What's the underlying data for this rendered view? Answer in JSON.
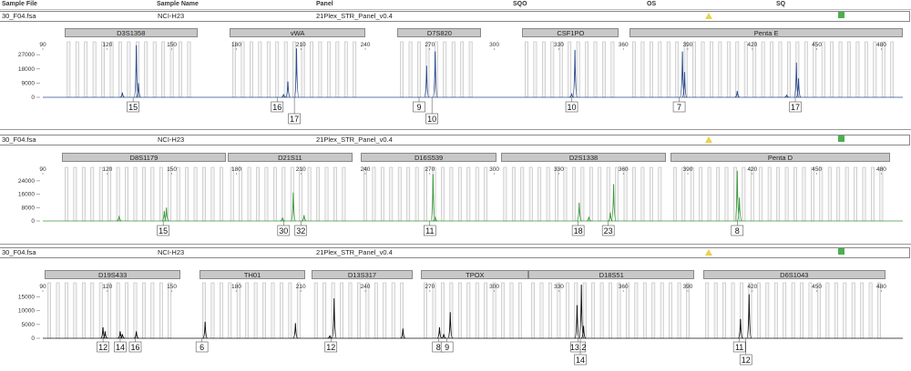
{
  "header": {
    "sample_file": "Sample File",
    "sample_name": "Sample Name",
    "panel": "Panel",
    "sqo": "SQO",
    "os": "OS",
    "sq": "SQ"
  },
  "x_ticks": [
    90,
    120,
    150,
    180,
    210,
    240,
    270,
    300,
    330,
    360,
    390,
    420,
    450,
    480
  ],
  "panels": [
    {
      "file": "30_F04.fsa",
      "name": "NCI-H23",
      "panel": "21Plex_STR_Panel_v0.4",
      "color": "#2b4b8c",
      "y_ticks": [
        0,
        9000,
        18000,
        27000
      ],
      "y_max": 34000,
      "loci": [
        {
          "name": "D3S1358",
          "start": 100,
          "end": 162
        },
        {
          "name": "vWA",
          "start": 177,
          "end": 240
        },
        {
          "name": "D7S820",
          "start": 255,
          "end": 294
        },
        {
          "name": "CSF1PO",
          "start": 313,
          "end": 358
        },
        {
          "name": "Penta E",
          "start": 363,
          "end": 490
        }
      ],
      "peaks": [
        {
          "x": 133.5,
          "h": 33000
        },
        {
          "x": 134.5,
          "h": 9000
        },
        {
          "x": 127,
          "h": 3000
        },
        {
          "x": 204,
          "h": 10000
        },
        {
          "x": 208,
          "h": 31000
        },
        {
          "x": 202,
          "h": 2000
        },
        {
          "x": 268.5,
          "h": 20000
        },
        {
          "x": 272.5,
          "h": 29000
        },
        {
          "x": 337.5,
          "h": 30000
        },
        {
          "x": 336,
          "h": 2500
        },
        {
          "x": 387.5,
          "h": 29000
        },
        {
          "x": 388.5,
          "h": 16000
        },
        {
          "x": 413,
          "h": 4000
        },
        {
          "x": 440.5,
          "h": 22000
        },
        {
          "x": 441.5,
          "h": 12000
        },
        {
          "x": 436,
          "h": 1500
        }
      ],
      "labels": [
        {
          "x": 132,
          "text": "15",
          "row": 0
        },
        {
          "x": 199,
          "text": "16",
          "row": 0
        },
        {
          "x": 207,
          "text": "17",
          "row": 1
        },
        {
          "x": 265,
          "text": "9",
          "row": 0
        },
        {
          "x": 271,
          "text": "10",
          "row": 1
        },
        {
          "x": 336,
          "text": "10",
          "row": 0
        },
        {
          "x": 386,
          "text": "7",
          "row": 0
        },
        {
          "x": 440,
          "text": "17",
          "row": 0
        }
      ]
    },
    {
      "file": "30_F04.fsa",
      "name": "NCI-H23",
      "panel": "21Plex_STR_Panel_v0.4",
      "color": "#3a9a3a",
      "y_ticks": [
        0,
        8000,
        16000,
        24000
      ],
      "y_max": 31000,
      "loci": [
        {
          "name": "D8S1179",
          "start": 99,
          "end": 175
        },
        {
          "name": "D21S11",
          "start": 176,
          "end": 234
        },
        {
          "name": "D16S539",
          "start": 238,
          "end": 301
        },
        {
          "name": "D2S1338",
          "start": 303,
          "end": 380
        },
        {
          "name": "Penta D",
          "start": 382,
          "end": 484
        }
      ],
      "peaks": [
        {
          "x": 146.5,
          "h": 6000
        },
        {
          "x": 147.5,
          "h": 8000
        },
        {
          "x": 125.5,
          "h": 3000
        },
        {
          "x": 206.5,
          "h": 17000
        },
        {
          "x": 211.5,
          "h": 3500
        },
        {
          "x": 201.5,
          "h": 2000
        },
        {
          "x": 271.5,
          "h": 28000
        },
        {
          "x": 272.5,
          "h": 2500
        },
        {
          "x": 339.5,
          "h": 11000
        },
        {
          "x": 344,
          "h": 2500
        },
        {
          "x": 355.5,
          "h": 22000
        },
        {
          "x": 354,
          "h": 5000
        },
        {
          "x": 413,
          "h": 30000
        },
        {
          "x": 414,
          "h": 14000
        }
      ],
      "labels": [
        {
          "x": 146,
          "text": "15",
          "row": 0
        },
        {
          "x": 202,
          "text": "30",
          "row": 0
        },
        {
          "x": 210,
          "text": "32",
          "row": 0
        },
        {
          "x": 270,
          "text": "11",
          "row": 0
        },
        {
          "x": 339,
          "text": "18",
          "row": 0
        },
        {
          "x": 353,
          "text": "23",
          "row": 0
        },
        {
          "x": 413,
          "text": "8",
          "row": 0
        }
      ]
    },
    {
      "file": "30_F04.fsa",
      "name": "NCI-H23",
      "panel": "21Plex_STR_Panel_v0.4",
      "color": "#111111",
      "y_ticks": [
        0,
        5000,
        10000,
        15000
      ],
      "y_max": 19500,
      "loci": [
        {
          "name": "D19S433",
          "start": 91,
          "end": 154
        },
        {
          "name": "TH01",
          "start": 163,
          "end": 212
        },
        {
          "name": "D13S317",
          "start": 215,
          "end": 262
        },
        {
          "name": "TPOX",
          "start": 266,
          "end": 316
        },
        {
          "name": "D18S51",
          "start": 316,
          "end": 393
        },
        {
          "name": "D6S1043",
          "start": 397,
          "end": 482
        }
      ],
      "peaks": [
        {
          "x": 118,
          "h": 4000
        },
        {
          "x": 119,
          "h": 2500
        },
        {
          "x": 126,
          "h": 2500
        },
        {
          "x": 127,
          "h": 1500
        },
        {
          "x": 133.5,
          "h": 2500
        },
        {
          "x": 165.5,
          "h": 6000
        },
        {
          "x": 207.5,
          "h": 5500
        },
        {
          "x": 225.5,
          "h": 14500
        },
        {
          "x": 223.5,
          "h": 1000
        },
        {
          "x": 257.5,
          "h": 3500
        },
        {
          "x": 274.5,
          "h": 4000
        },
        {
          "x": 276.5,
          "h": 1500
        },
        {
          "x": 279.5,
          "h": 9500
        },
        {
          "x": 338.5,
          "h": 12000
        },
        {
          "x": 340.5,
          "h": 19500
        },
        {
          "x": 341.5,
          "h": 4500
        },
        {
          "x": 414.5,
          "h": 7000
        },
        {
          "x": 418.5,
          "h": 16000
        }
      ],
      "labels": [
        {
          "x": 118,
          "text": "12",
          "row": 0
        },
        {
          "x": 126,
          "text": "14",
          "row": 0
        },
        {
          "x": 133,
          "text": "16",
          "row": 0
        },
        {
          "x": 164,
          "text": "6",
          "row": 0
        },
        {
          "x": 224,
          "text": "12",
          "row": 0
        },
        {
          "x": 274,
          "text": "8",
          "row": 0
        },
        {
          "x": 278,
          "text": "9",
          "row": 0
        },
        {
          "x": 339,
          "text": "13.2",
          "row": 0
        },
        {
          "x": 340,
          "text": "14",
          "row": 1
        },
        {
          "x": 414,
          "text": "11",
          "row": 0
        },
        {
          "x": 417,
          "text": "12",
          "row": 1
        }
      ]
    }
  ]
}
